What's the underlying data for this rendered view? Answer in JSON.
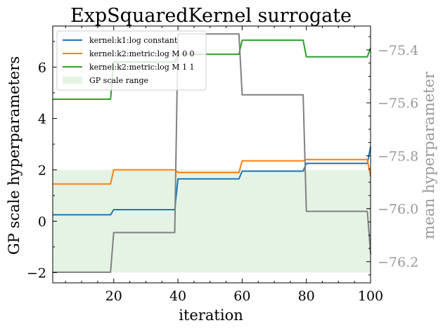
{
  "chart_data": {
    "type": "line",
    "title": "ExpSquaredKernel surrogate",
    "xlabel": "iteration",
    "ylabel": "GP scale hyperparameters",
    "ylabel_right": "mean hyperparameter",
    "xlim": [
      1,
      100
    ],
    "ylim": [
      -2.4,
      7.6
    ],
    "ylim_right": [
      -76.28,
      -75.31
    ],
    "xticks": [
      20,
      40,
      60,
      80,
      100
    ],
    "yticks": [
      -2,
      0,
      2,
      4,
      6
    ],
    "yticks_right": [
      -76.2,
      -76.0,
      -75.8,
      -75.6,
      -75.4
    ],
    "ytick_labels": [
      "−2",
      "0",
      "2",
      "4",
      "6"
    ],
    "ytick_labels_right": [
      "−76.2",
      "−76.0",
      "−75.8",
      "−75.6",
      "−75.4"
    ],
    "shaded_band": {
      "label": "GP scale range",
      "y0": -2,
      "y1": 2,
      "color": "#2ca02c"
    },
    "legend_position": "upper-left",
    "series": [
      {
        "name": "kernel:k1:log constant",
        "color": "#1f77b4",
        "axis": "left",
        "x": [
          1,
          19,
          20,
          39,
          40,
          59,
          60,
          79,
          80,
          99,
          100
        ],
        "y": [
          0.25,
          0.25,
          0.45,
          0.45,
          1.65,
          1.65,
          1.95,
          1.95,
          2.25,
          2.25,
          2.9
        ]
      },
      {
        "name": "kernel:k2:metric:log M 0 0",
        "color": "#ff7f0e",
        "axis": "left",
        "x": [
          1,
          19,
          20,
          39,
          40,
          59,
          60,
          79,
          80,
          99,
          100
        ],
        "y": [
          1.45,
          1.45,
          2.0,
          2.0,
          1.9,
          1.9,
          2.35,
          2.35,
          2.4,
          2.4,
          1.75
        ]
      },
      {
        "name": "kernel:k2:metric:log M 1 1",
        "color": "#2ca02c",
        "axis": "left",
        "x": [
          1,
          19,
          20,
          39,
          40,
          59,
          60,
          79,
          80,
          99,
          100
        ],
        "y": [
          4.75,
          4.75,
          6.2,
          6.2,
          6.5,
          6.5,
          7.05,
          7.05,
          6.4,
          6.4,
          6.75
        ]
      },
      {
        "color": "#808080",
        "axis": "right",
        "x": [
          1,
          19,
          20,
          39,
          40,
          59,
          60,
          79,
          80,
          99,
          100
        ],
        "y": [
          -76.24,
          -76.24,
          -76.09,
          -76.09,
          -75.34,
          -75.34,
          -75.57,
          -75.57,
          -76.01,
          -76.01,
          -76.17
        ]
      }
    ]
  }
}
